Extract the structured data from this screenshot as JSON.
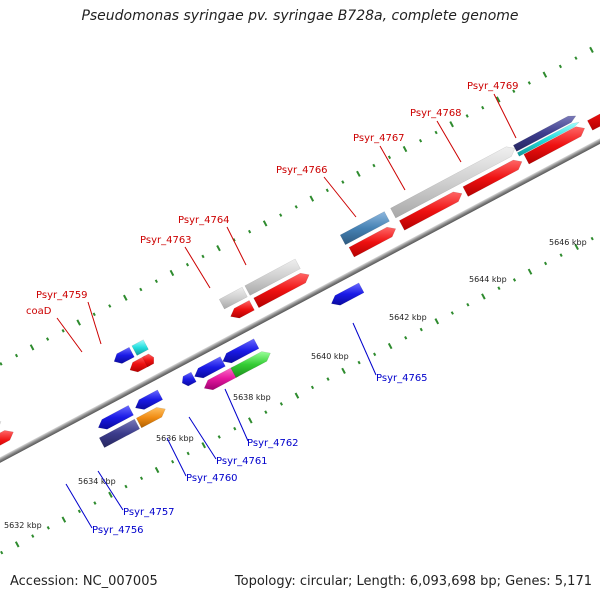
{
  "title": "Pseudomonas syringae pv. syringae B728a, complete genome",
  "footer": {
    "accession": "Accession: NC_007005",
    "stats": "Topology: circular; Length: 6,093,698 bp; Genes: 5,171"
  },
  "colors": {
    "backbone": "#888888",
    "tick": "#2e8b2e",
    "label_forward": "#cc0000",
    "label_reverse": "#0000cc",
    "cds_red": "#ee1111",
    "cds_blue": "#1a1ae6",
    "cds_gray": "#c8c8c8",
    "cds_navy": "#3c3c8c",
    "cds_steel": "#4682b4",
    "cds_cyan": "#22dddd",
    "cds_orange": "#f08c14",
    "cds_magenta": "#e6199f",
    "cds_green": "#33cc33"
  },
  "map": {
    "ticks": [
      {
        "label": "5632 kbp",
        "kbp": 5632
      },
      {
        "label": "5634 kbp",
        "kbp": 5634
      },
      {
        "label": "5636 kbp",
        "kbp": 5636
      },
      {
        "label": "5638 kbp",
        "kbp": 5638
      },
      {
        "label": "5640 kbp",
        "kbp": 5640
      },
      {
        "label": "5642 kbp",
        "kbp": 5642
      },
      {
        "label": "5644 kbp",
        "kbp": 5644
      },
      {
        "label": "5646 kbp",
        "kbp": 5646
      }
    ],
    "labels": [
      {
        "text": "Psyr_4759",
        "strand": "forward"
      },
      {
        "text": "coaD",
        "strand": "forward"
      },
      {
        "text": "Psyr_4763",
        "strand": "forward"
      },
      {
        "text": "Psyr_4764",
        "strand": "forward"
      },
      {
        "text": "Psyr_4766",
        "strand": "forward"
      },
      {
        "text": "Psyr_4767",
        "strand": "forward"
      },
      {
        "text": "Psyr_4768",
        "strand": "forward"
      },
      {
        "text": "Psyr_4769",
        "strand": "forward"
      },
      {
        "text": "Psyr_4765",
        "strand": "reverse"
      },
      {
        "text": "Psyr_4762",
        "strand": "reverse"
      },
      {
        "text": "Psyr_4761",
        "strand": "reverse"
      },
      {
        "text": "Psyr_4760",
        "strand": "reverse"
      },
      {
        "text": "Psyr_4757",
        "strand": "reverse"
      },
      {
        "text": "Psyr_4756",
        "strand": "reverse"
      }
    ]
  }
}
